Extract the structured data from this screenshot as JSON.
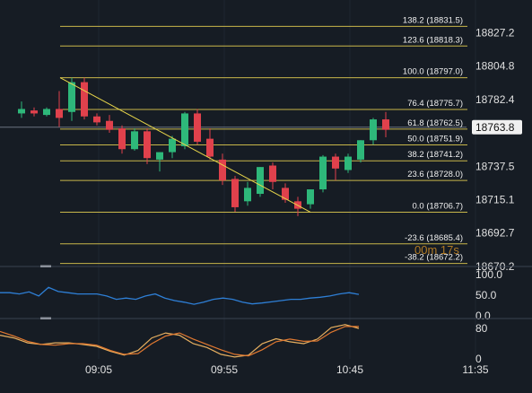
{
  "timer_text": "00m 17s",
  "colors": {
    "background": "#161c24",
    "up": "#2eb87a",
    "down": "#e0414c",
    "fib_line": "#c8b64a",
    "trend_line": "#e8d64a",
    "rsi_line": "#2e7fd6",
    "stoch_k": "#e8b060",
    "stoch_d": "#e07830",
    "current_price_tag_bg": "#f0f0f0",
    "current_price_tag_text": "#111111",
    "timer": "#b07a24",
    "axis_text": "#e0e0e0"
  },
  "chart_data": [
    {
      "type": "candlestick",
      "title": "",
      "ylim": [
        18665,
        18835
      ],
      "price_ticks": [
        {
          "value": 18827.2,
          "label": "18827.2"
        },
        {
          "value": 18804.8,
          "label": "18804.8"
        },
        {
          "value": 18782.4,
          "label": "18782.4"
        },
        {
          "value": 18737.5,
          "label": "18737.5"
        },
        {
          "value": 18715.1,
          "label": "18715.1"
        },
        {
          "value": 18692.7,
          "label": "18692.7"
        },
        {
          "value": 18670.2,
          "label": "18670.2"
        }
      ],
      "current_price": {
        "value": 18763.8,
        "label": "18763.8"
      },
      "fib_levels": [
        {
          "value": 18831.5,
          "label": "138.2 (18831.5)"
        },
        {
          "value": 18818.3,
          "label": "123.6 (18818.3)"
        },
        {
          "value": 18797.0,
          "label": "100.0 (18797.0)"
        },
        {
          "value": 18775.7,
          "label": "76.4 (18775.7)"
        },
        {
          "value": 18762.5,
          "label": "61.8 (18762.5)"
        },
        {
          "value": 18751.9,
          "label": "50.0 (18751.9)"
        },
        {
          "value": 18741.2,
          "label": "38.2 (18741.2)"
        },
        {
          "value": 18728.0,
          "label": "23.6 (18728.0)"
        },
        {
          "value": 18706.7,
          "label": "0.0 (18706.7)"
        },
        {
          "value": 18685.4,
          "label": "-23.6 (18685.4)"
        },
        {
          "value": 18672.2,
          "label": "-38.2 (18672.2)"
        }
      ],
      "trend_line": {
        "from": {
          "index": 4.2,
          "value": 18797.0
        },
        "to": {
          "index": 25.5,
          "value": 18706.7
        }
      },
      "x_ticks": [
        {
          "index": 5,
          "label": "09:05"
        },
        {
          "index": 15,
          "label": "09:55"
        },
        {
          "index": 25,
          "label": "10:45"
        },
        {
          "index": 35,
          "label": "11:35"
        }
      ],
      "candles": [
        {
          "o": 18773,
          "h": 18781,
          "l": 18770,
          "c": 18776
        },
        {
          "o": 18775,
          "h": 18777,
          "l": 18771,
          "c": 18773
        },
        {
          "o": 18772,
          "h": 18777,
          "l": 18771,
          "c": 18776
        },
        {
          "o": 18776,
          "h": 18788,
          "l": 18764,
          "c": 18770
        },
        {
          "o": 18774,
          "h": 18797,
          "l": 18768,
          "c": 18794
        },
        {
          "o": 18794,
          "h": 18797,
          "l": 18769,
          "c": 18771
        },
        {
          "o": 18771,
          "h": 18773,
          "l": 18765,
          "c": 18767
        },
        {
          "o": 18768,
          "h": 18772,
          "l": 18760,
          "c": 18762
        },
        {
          "o": 18763,
          "h": 18765,
          "l": 18746,
          "c": 18749
        },
        {
          "o": 18749,
          "h": 18763,
          "l": 18748,
          "c": 18761
        },
        {
          "o": 18761,
          "h": 18763,
          "l": 18739,
          "c": 18743
        },
        {
          "o": 18742,
          "h": 18747,
          "l": 18734,
          "c": 18747
        },
        {
          "o": 18747,
          "h": 18758,
          "l": 18743,
          "c": 18756
        },
        {
          "o": 18751,
          "h": 18774,
          "l": 18749,
          "c": 18773
        },
        {
          "o": 18773,
          "h": 18776,
          "l": 18752,
          "c": 18754
        },
        {
          "o": 18756,
          "h": 18763,
          "l": 18742,
          "c": 18744
        },
        {
          "o": 18742,
          "h": 18746,
          "l": 18725,
          "c": 18728
        },
        {
          "o": 18729,
          "h": 18731,
          "l": 18707,
          "c": 18710
        },
        {
          "o": 18714,
          "h": 18727,
          "l": 18711,
          "c": 18723
        },
        {
          "o": 18719,
          "h": 18737,
          "l": 18717,
          "c": 18737
        },
        {
          "o": 18738,
          "h": 18740,
          "l": 18722,
          "c": 18727
        },
        {
          "o": 18723,
          "h": 18726,
          "l": 18713,
          "c": 18715
        },
        {
          "o": 18714,
          "h": 18717,
          "l": 18704,
          "c": 18709
        },
        {
          "o": 18712,
          "h": 18722,
          "l": 18709,
          "c": 18722
        },
        {
          "o": 18722,
          "h": 18745,
          "l": 18720,
          "c": 18744
        },
        {
          "o": 18744,
          "h": 18746,
          "l": 18728,
          "c": 18736
        },
        {
          "o": 18735,
          "h": 18746,
          "l": 18733,
          "c": 18744
        },
        {
          "o": 18742,
          "h": 18755,
          "l": 18740,
          "c": 18755
        },
        {
          "o": 18755,
          "h": 18770,
          "l": 18752,
          "c": 18769
        },
        {
          "o": 18769,
          "h": 18774,
          "l": 18757,
          "c": 18762
        }
      ]
    },
    {
      "type": "line",
      "title": "",
      "ylim": [
        0,
        100
      ],
      "ticks": [
        {
          "value": 100,
          "label": "100.0"
        },
        {
          "value": 50,
          "label": "50.0"
        },
        {
          "value": 0,
          "label": "0.0"
        }
      ],
      "series": [
        {
          "values": [
            56,
            56,
            53,
            58,
            48,
            69,
            59,
            56,
            53,
            53,
            53,
            48,
            40,
            43,
            40,
            48,
            53,
            43,
            37,
            33,
            28,
            33,
            40,
            43,
            40,
            33,
            29,
            31,
            34,
            37,
            40,
            40,
            43,
            45,
            48,
            53,
            56,
            52
          ]
        }
      ]
    },
    {
      "type": "line",
      "title": "",
      "ylim": [
        0,
        100
      ],
      "ticks": [
        {
          "value": 80,
          "label": "80"
        },
        {
          "value": 0,
          "label": "0"
        }
      ],
      "series": [
        {
          "values": [
            62,
            55,
            42,
            38,
            42,
            42,
            38,
            33,
            20,
            10,
            22,
            55,
            68,
            62,
            40,
            30,
            12,
            5,
            10,
            40,
            53,
            45,
            40,
            52,
            82,
            90,
            80
          ]
        },
        {
          "values": [
            72,
            60,
            46,
            38,
            36,
            40,
            40,
            36,
            22,
            12,
            14,
            40,
            60,
            68,
            52,
            38,
            24,
            12,
            8,
            24,
            45,
            52,
            46,
            47,
            70,
            85,
            85
          ]
        }
      ]
    }
  ]
}
